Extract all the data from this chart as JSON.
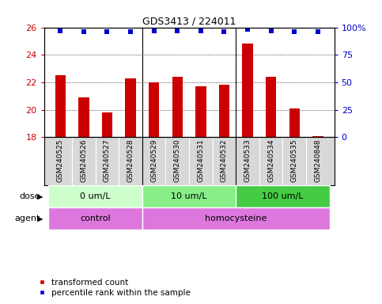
{
  "title": "GDS3413 / 224011",
  "samples": [
    "GSM240525",
    "GSM240526",
    "GSM240527",
    "GSM240528",
    "GSM240529",
    "GSM240530",
    "GSM240531",
    "GSM240532",
    "GSM240533",
    "GSM240534",
    "GSM240535",
    "GSM240848"
  ],
  "bar_values": [
    22.5,
    20.9,
    19.8,
    22.3,
    22.0,
    22.4,
    21.7,
    21.8,
    24.8,
    22.4,
    20.1,
    18.1
  ],
  "percentile_values": [
    97,
    96,
    96,
    96,
    97,
    97,
    97,
    96,
    98,
    97,
    96,
    96
  ],
  "bar_color": "#cc0000",
  "dot_color": "#0000cc",
  "ylim_left": [
    18,
    26
  ],
  "ylim_right": [
    0,
    100
  ],
  "yticks_left": [
    18,
    20,
    22,
    24,
    26
  ],
  "yticks_right": [
    0,
    25,
    50,
    75,
    100
  ],
  "ytick_labels_right": [
    "0",
    "25",
    "50",
    "75",
    "100%"
  ],
  "dose_groups": [
    {
      "label": "0 um/L",
      "start": 0,
      "end": 3,
      "color": "#ccffcc"
    },
    {
      "label": "10 um/L",
      "start": 4,
      "end": 7,
      "color": "#88ee88"
    },
    {
      "label": "100 um/L",
      "start": 8,
      "end": 11,
      "color": "#44cc44"
    }
  ],
  "agent_groups": [
    {
      "label": "control",
      "start": 0,
      "end": 3,
      "color": "#dd77dd"
    },
    {
      "label": "homocysteine",
      "start": 4,
      "end": 11,
      "color": "#dd77dd"
    }
  ],
  "legend_items": [
    {
      "label": "transformed count",
      "color": "#cc0000"
    },
    {
      "label": "percentile rank within the sample",
      "color": "#0000cc"
    }
  ],
  "dose_label": "dose",
  "agent_label": "agent",
  "background_color": "#ffffff",
  "tick_bg_color": "#d8d8d8",
  "grid_color": "#000000",
  "sep_color": "#000000",
  "bar_width": 0.45
}
